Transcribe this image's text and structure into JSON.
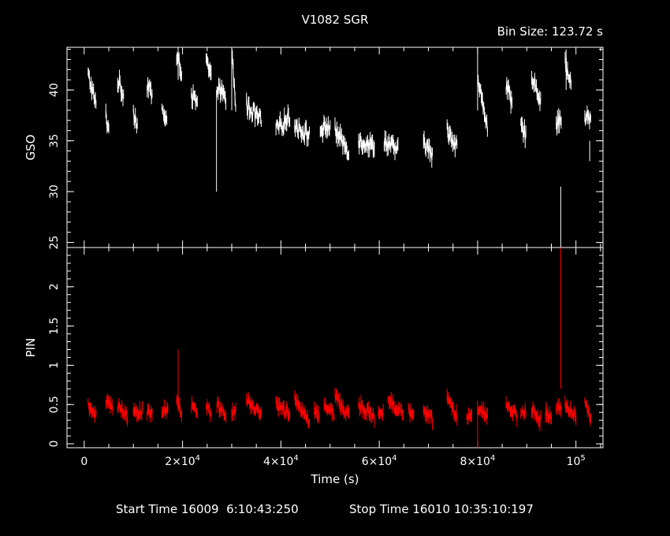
{
  "chart_data": {
    "type": "line",
    "title": "V1082 SGR",
    "bin_size_label": "Bin Size:  123.72  s",
    "xlabel": "Time (s)",
    "xlim": [
      -3500,
      105500
    ],
    "x_ticks": [
      {
        "value": 0,
        "label": "0"
      },
      {
        "value": 20000,
        "label": "2×10^4"
      },
      {
        "value": 40000,
        "label": "4×10^4"
      },
      {
        "value": 60000,
        "label": "6×10^4"
      },
      {
        "value": 80000,
        "label": "8×10^4"
      },
      {
        "value": 100000,
        "label": "10^5"
      }
    ],
    "footer": {
      "start_label": "Start Time 16009  6:10:43:250",
      "stop_label": "Stop Time 16010 10:35:10:197"
    },
    "panels": [
      {
        "name": "gso",
        "ylabel": "GSO",
        "ylim": [
          24.5,
          44.2
        ],
        "y_ticks": [
          25,
          30,
          35,
          40
        ],
        "color": "#ffffff",
        "segments": [
          {
            "x0": 800,
            "x1": 2400,
            "y0": 41.5,
            "y1": 38.5
          },
          {
            "x0": 4400,
            "x1": 5000,
            "y0": 37.5,
            "y1": 36.0
          },
          {
            "x0": 6800,
            "x1": 8000,
            "y0": 41.0,
            "y1": 39.5
          },
          {
            "x0": 10000,
            "x1": 10800,
            "y0": 38.0,
            "y1": 36.5
          },
          {
            "x0": 12800,
            "x1": 13800,
            "y0": 40.5,
            "y1": 39.5
          },
          {
            "x0": 15800,
            "x1": 16800,
            "y0": 38.0,
            "y1": 37.0
          },
          {
            "x0": 18800,
            "x1": 19800,
            "y0": 43.0,
            "y1": 42.0
          },
          {
            "x0": 21800,
            "x1": 23000,
            "y0": 39.5,
            "y1": 38.5
          },
          {
            "x0": 24800,
            "x1": 25800,
            "y0": 43.0,
            "y1": 41.0
          },
          {
            "x0": 27000,
            "x1": 28800,
            "y0": 40.5,
            "y1": 39.0
          },
          {
            "x0": 30000,
            "x1": 30800,
            "y0": 44.0,
            "y1": 38.5
          },
          {
            "x0": 33000,
            "x1": 36000,
            "y0": 38.5,
            "y1": 37.0
          },
          {
            "x0": 39000,
            "x1": 41800,
            "y0": 36.0,
            "y1": 37.5
          },
          {
            "x0": 42800,
            "x1": 45800,
            "y0": 36.5,
            "y1": 35.5
          },
          {
            "x0": 48000,
            "x1": 50000,
            "y0": 36.0,
            "y1": 36.5
          },
          {
            "x0": 51000,
            "x1": 53800,
            "y0": 36.0,
            "y1": 34.0
          },
          {
            "x0": 55800,
            "x1": 59000,
            "y0": 35.0,
            "y1": 34.5
          },
          {
            "x0": 61000,
            "x1": 63800,
            "y0": 35.0,
            "y1": 34.0
          },
          {
            "x0": 69000,
            "x1": 70800,
            "y0": 35.0,
            "y1": 33.5
          },
          {
            "x0": 73800,
            "x1": 75800,
            "y0": 36.0,
            "y1": 34.5
          },
          {
            "x0": 80000,
            "x1": 82000,
            "y0": 41.0,
            "y1": 36.5
          },
          {
            "x0": 85800,
            "x1": 87000,
            "y0": 40.5,
            "y1": 38.5
          },
          {
            "x0": 88800,
            "x1": 89800,
            "y0": 36.5,
            "y1": 35.5
          },
          {
            "x0": 91000,
            "x1": 92800,
            "y0": 41.5,
            "y1": 39.0
          },
          {
            "x0": 96000,
            "x1": 97000,
            "y0": 36.5,
            "y1": 37.5
          },
          {
            "x0": 97800,
            "x1": 99000,
            "y0": 42.5,
            "y1": 40.5
          },
          {
            "x0": 101800,
            "x1": 103000,
            "y0": 37.5,
            "y1": 37.0
          }
        ],
        "spikes": [
          {
            "x": 19100,
            "y0": 41.0,
            "y1": 44.2
          },
          {
            "x": 26900,
            "y0": 30.0,
            "y1": 40.0
          },
          {
            "x": 30000,
            "y0": 38.0,
            "y1": 44.2
          },
          {
            "x": 80000,
            "y0": 38.0,
            "y1": 44.2
          },
          {
            "x": 96900,
            "y0": 24.5,
            "y1": 30.5
          },
          {
            "x": 98000,
            "y0": 40.0,
            "y1": 44.0
          },
          {
            "x": 102800,
            "y0": 33.0,
            "y1": 35.0
          }
        ]
      },
      {
        "name": "pin",
        "ylabel": "PIN",
        "ylim": [
          -0.05,
          2.5
        ],
        "y_ticks": [
          {
            "value": 0,
            "label": "0"
          },
          {
            "value": 0.5,
            "label": "0.5"
          },
          {
            "value": 1,
            "label": "1"
          },
          {
            "value": 1.5,
            "label": "1.5"
          },
          {
            "value": 2,
            "label": "2"
          }
        ],
        "color": "#ff0000",
        "segments": [
          {
            "x0": 800,
            "x1": 2400,
            "y0": 0.5,
            "y1": 0.35
          },
          {
            "x0": 4400,
            "x1": 5800,
            "y0": 0.55,
            "y1": 0.45
          },
          {
            "x0": 6800,
            "x1": 8800,
            "y0": 0.5,
            "y1": 0.35
          },
          {
            "x0": 10000,
            "x1": 11800,
            "y0": 0.45,
            "y1": 0.4
          },
          {
            "x0": 12800,
            "x1": 13800,
            "y0": 0.4,
            "y1": 0.38
          },
          {
            "x0": 15800,
            "x1": 17000,
            "y0": 0.45,
            "y1": 0.4
          },
          {
            "x0": 18800,
            "x1": 19800,
            "y0": 0.55,
            "y1": 0.4
          },
          {
            "x0": 21800,
            "x1": 23000,
            "y0": 0.5,
            "y1": 0.4
          },
          {
            "x0": 24800,
            "x1": 25800,
            "y0": 0.45,
            "y1": 0.38
          },
          {
            "x0": 27000,
            "x1": 28800,
            "y0": 0.5,
            "y1": 0.35
          },
          {
            "x0": 30000,
            "x1": 30800,
            "y0": 0.4,
            "y1": 0.4
          },
          {
            "x0": 33000,
            "x1": 36000,
            "y0": 0.55,
            "y1": 0.35
          },
          {
            "x0": 39000,
            "x1": 41800,
            "y0": 0.5,
            "y1": 0.38
          },
          {
            "x0": 42800,
            "x1": 45800,
            "y0": 0.55,
            "y1": 0.3
          },
          {
            "x0": 46800,
            "x1": 47800,
            "y0": 0.45,
            "y1": 0.35
          },
          {
            "x0": 48800,
            "x1": 50800,
            "y0": 0.5,
            "y1": 0.4
          },
          {
            "x0": 51000,
            "x1": 53800,
            "y0": 0.6,
            "y1": 0.35
          },
          {
            "x0": 55800,
            "x1": 59000,
            "y0": 0.5,
            "y1": 0.35
          },
          {
            "x0": 59800,
            "x1": 60800,
            "y0": 0.45,
            "y1": 0.4
          },
          {
            "x0": 61800,
            "x1": 64800,
            "y0": 0.55,
            "y1": 0.4
          },
          {
            "x0": 66000,
            "x1": 67000,
            "y0": 0.4,
            "y1": 0.35
          },
          {
            "x0": 69000,
            "x1": 70800,
            "y0": 0.45,
            "y1": 0.3
          },
          {
            "x0": 73800,
            "x1": 75800,
            "y0": 0.6,
            "y1": 0.35
          },
          {
            "x0": 77800,
            "x1": 78800,
            "y0": 0.35,
            "y1": 0.3
          },
          {
            "x0": 80000,
            "x1": 82000,
            "y0": 0.45,
            "y1": 0.35
          },
          {
            "x0": 85800,
            "x1": 88000,
            "y0": 0.5,
            "y1": 0.35
          },
          {
            "x0": 88800,
            "x1": 89800,
            "y0": 0.45,
            "y1": 0.4
          },
          {
            "x0": 91000,
            "x1": 92800,
            "y0": 0.45,
            "y1": 0.3
          },
          {
            "x0": 93800,
            "x1": 95000,
            "y0": 0.4,
            "y1": 0.35
          },
          {
            "x0": 96000,
            "x1": 97000,
            "y0": 0.45,
            "y1": 0.45
          },
          {
            "x0": 97800,
            "x1": 100000,
            "y0": 0.5,
            "y1": 0.35
          },
          {
            "x0": 101800,
            "x1": 103000,
            "y0": 0.5,
            "y1": 0.35
          }
        ],
        "spikes": [
          {
            "x": 19100,
            "y0": 0.5,
            "y1": 1.2
          },
          {
            "x": 80000,
            "y0": -0.05,
            "y1": 0.55
          },
          {
            "x": 96900,
            "y0": 0.7,
            "y1": 2.5
          }
        ]
      }
    ]
  }
}
